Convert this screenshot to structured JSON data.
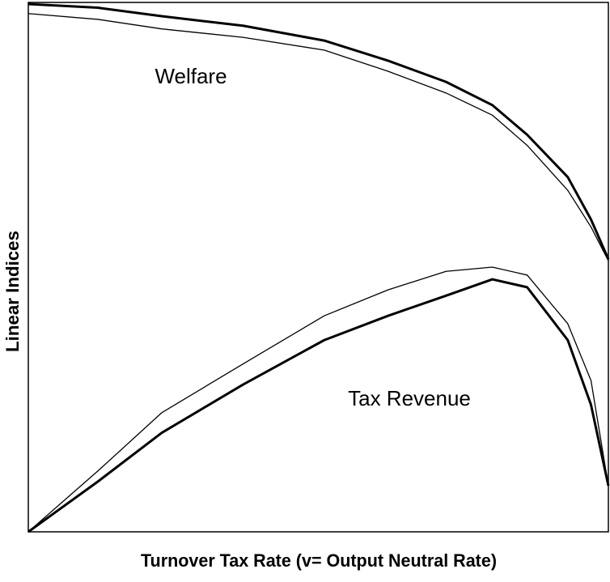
{
  "chart_data": {
    "type": "line",
    "xlabel": "Turnover Tax Rate (v= Output Neutral Rate)",
    "ylabel": "Linear Indices",
    "annotations": [
      "Welfare",
      "Tax Revenue"
    ],
    "x": [
      0,
      12,
      23,
      37,
      51,
      62,
      72,
      80,
      86,
      93,
      97,
      100
    ],
    "xlim": [
      0,
      100
    ],
    "ylim": [
      0,
      100
    ],
    "series": [
      {
        "color": "#000000",
        "width": 3,
        "values": [
          99.7,
          99,
          97.4,
          95.6,
          92.8,
          89,
          85,
          80.6,
          75,
          67,
          59,
          51.5
        ]
      },
      {
        "color": "#000000",
        "width": 1.3,
        "values": [
          97.9,
          96.8,
          95,
          93.4,
          91,
          87,
          82.9,
          78.7,
          73,
          64.5,
          57.6,
          51.2
        ]
      },
      {
        "color": "#000000",
        "width": 3,
        "values": [
          0,
          9.5,
          18.7,
          27.8,
          36.2,
          40.8,
          44.6,
          47.7,
          46.2,
          36.2,
          24,
          8.7
        ]
      },
      {
        "color": "#000000",
        "width": 1.3,
        "values": [
          0,
          11.5,
          22.5,
          31.7,
          40.8,
          45.7,
          49.2,
          50,
          48.5,
          39.3,
          28.6,
          8.7
        ]
      }
    ]
  }
}
